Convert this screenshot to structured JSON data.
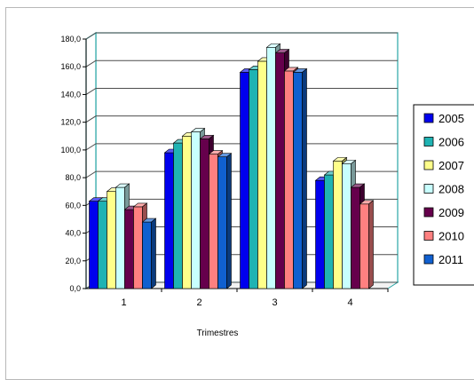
{
  "chart_data": {
    "type": "bar",
    "title": "",
    "xlabel": "Trimestres",
    "ylabel": "",
    "ylim": [
      0,
      180
    ],
    "yticks": [
      "0,0",
      "20,0",
      "40,0",
      "60,0",
      "80,0",
      "100,0",
      "120,0",
      "140,0",
      "160,0",
      "180,0"
    ],
    "categories": [
      "1",
      "2",
      "3",
      "4"
    ],
    "grid": true,
    "legend_position": "right",
    "series": [
      {
        "name": "2005",
        "color": "#0000ee",
        "values": [
          63,
          98,
          156,
          78
        ]
      },
      {
        "name": "2006",
        "color": "#1fb3b3",
        "values": [
          63,
          105,
          158,
          82
        ]
      },
      {
        "name": "2007",
        "color": "#ffff8a",
        "values": [
          70,
          110,
          164,
          92
        ]
      },
      {
        "name": "2008",
        "color": "#c8ffff",
        "values": [
          73,
          113,
          174,
          90
        ]
      },
      {
        "name": "2009",
        "color": "#66004c",
        "values": [
          57,
          108,
          170,
          73
        ]
      },
      {
        "name": "2010",
        "color": "#ff8080",
        "values": [
          59,
          97,
          157,
          61
        ]
      },
      {
        "name": "2011",
        "color": "#1060d0",
        "values": [
          48,
          95,
          156,
          0
        ]
      }
    ]
  }
}
